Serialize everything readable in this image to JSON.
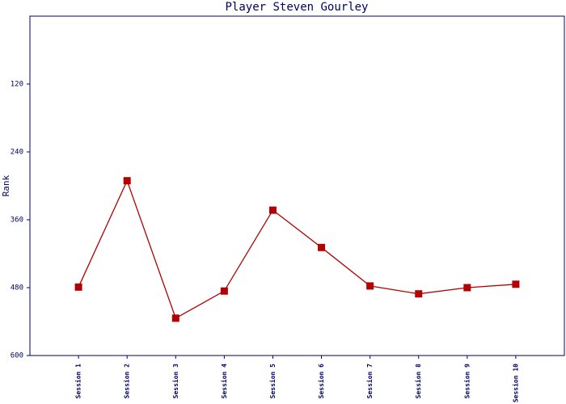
{
  "chart_data": {
    "type": "line",
    "title": "Player Steven Gourley",
    "y_label": "Rank",
    "categories": [
      "Session 1",
      "Session 2",
      "Session 3",
      "Session 4",
      "Session 5",
      "Session 6",
      "Session 7",
      "Session 8",
      "Session 9",
      "Session 10"
    ],
    "series": [
      {
        "name": "Rank",
        "color": "#b30000",
        "values": [
          479,
          291,
          534,
          486,
          343,
          409,
          477,
          491,
          480,
          474
        ]
      }
    ],
    "ylim": [
      0,
      600
    ],
    "y_inverted": true,
    "yticks": [
      120,
      240,
      360,
      480,
      600
    ],
    "grid": false
  }
}
